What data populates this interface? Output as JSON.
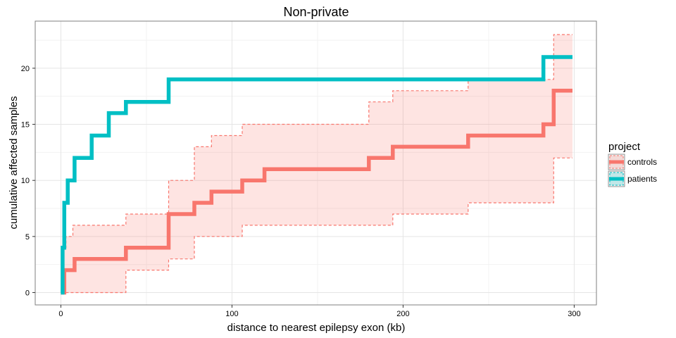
{
  "chart_data": {
    "type": "line",
    "title": "Non-private",
    "xlabel": "distance to nearest epilepsy exon (kb)",
    "ylabel": "cumulative affected samples",
    "xlim": [
      -15,
      313
    ],
    "ylim": [
      -1.1,
      24.2
    ],
    "x_ticks": [
      0,
      100,
      200,
      300
    ],
    "y_ticks": [
      0,
      5,
      10,
      15,
      20
    ],
    "grid": true,
    "legend": {
      "title": "project",
      "position": "right"
    },
    "series": [
      {
        "name": "controls",
        "color": "#F8766D",
        "step": true,
        "x": [
          0,
          2,
          8,
          38,
          63,
          78,
          88,
          106,
          119,
          180,
          194,
          238,
          282,
          288,
          299
        ],
        "y": [
          0,
          2,
          3,
          4,
          7,
          8,
          9,
          10,
          11,
          12,
          13,
          14,
          15,
          18,
          18
        ],
        "band": {
          "x": [
            0,
            1,
            3,
            7,
            38,
            63,
            78,
            88,
            106,
            180,
            194,
            238,
            282,
            288,
            299
          ],
          "lower": [
            0,
            0,
            0,
            0,
            2,
            3,
            5,
            5,
            6,
            6,
            7,
            8,
            8,
            12,
            12
          ],
          "upper": [
            0,
            4,
            5,
            6,
            7,
            10,
            13,
            14,
            15,
            17,
            18,
            19,
            19,
            23,
            23
          ]
        }
      },
      {
        "name": "patients",
        "color": "#00BFC4",
        "step": true,
        "x": [
          0,
          1,
          2,
          4,
          8,
          18,
          28,
          38,
          63,
          282,
          299
        ],
        "y": [
          0,
          4,
          8,
          10,
          12,
          14,
          16,
          17,
          19,
          21,
          21
        ]
      }
    ]
  }
}
